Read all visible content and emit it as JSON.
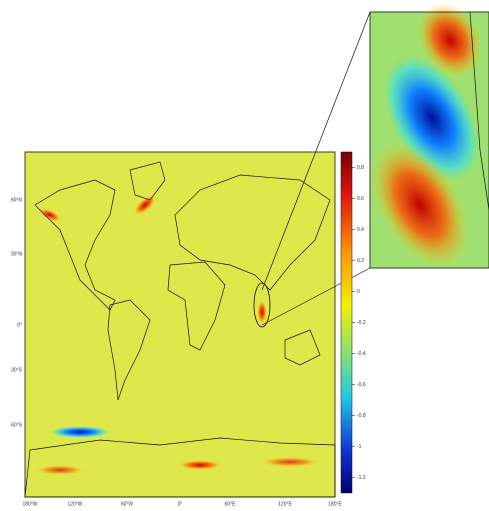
{
  "map": {
    "lat_labels": [
      "60°N",
      "30°N",
      "0°",
      "30°S",
      "60°S"
    ],
    "lon_labels": [
      "180°W",
      "120°W",
      "60°W",
      "0°",
      "60°E",
      "120°E",
      "180°E"
    ],
    "colorbar": {
      "range": [
        -1.3,
        0.9
      ],
      "ticks": [
        0.8,
        0.6,
        0.4,
        0.2,
        0,
        -0.2,
        -0.4,
        -0.6,
        -0.8,
        -1,
        -1.2
      ]
    }
  }
}
